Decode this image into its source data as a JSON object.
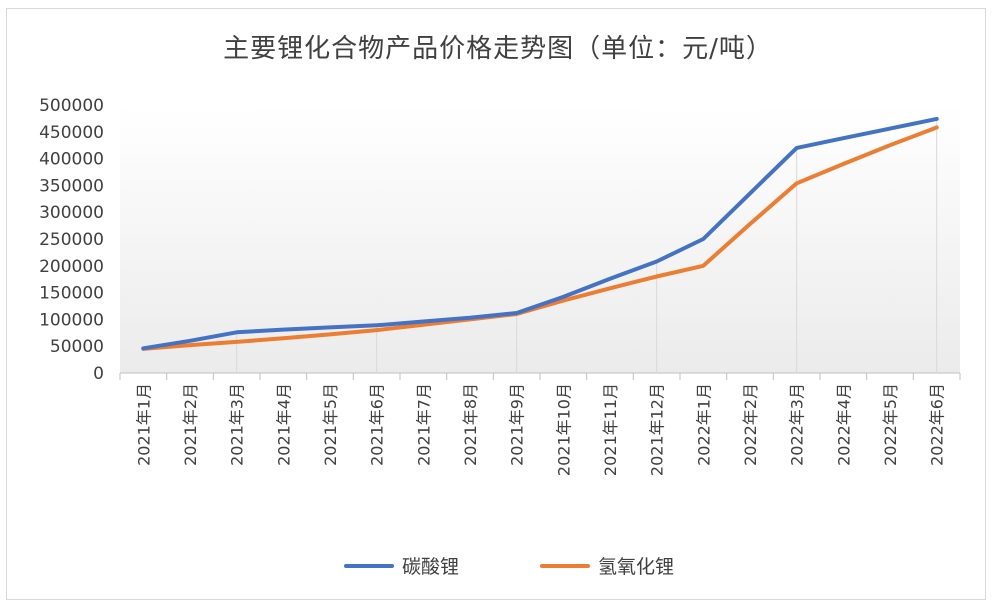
{
  "chart_data": {
    "type": "line",
    "title": "主要锂化合物产品价格走势图（单位：元/吨）",
    "xlabel": "",
    "ylabel": "",
    "categories": [
      "2021年1月",
      "2021年2月",
      "2021年3月",
      "2021年4月",
      "2021年5月",
      "2021年6月",
      "2021年7月",
      "2021年8月",
      "2021年9月",
      "2021年10月",
      "2021年11月",
      "2021年12月",
      "2022年1月",
      "2022年2月",
      "2022年3月",
      "2022年4月",
      "2022年5月",
      "2022年6月"
    ],
    "ylim": [
      0,
      500000
    ],
    "yticks": [
      "0",
      "50000",
      "100000",
      "150000",
      "200000",
      "250000",
      "300000",
      "350000",
      "400000",
      "450000",
      "500000"
    ],
    "series": [
      {
        "name": "碳酸锂",
        "color": "#4472C4",
        "values": [
          46000,
          60000,
          76000,
          81000,
          85000,
          89000,
          96000,
          103000,
          112000,
          142000,
          176000,
          208000,
          250000,
          335000,
          420000,
          438000,
          456000,
          474000
        ]
      },
      {
        "name": "氢氧化锂",
        "color": "#ED7D31",
        "values": [
          45000,
          52000,
          58000,
          65000,
          72000,
          80000,
          90000,
          100000,
          110000,
          135000,
          158000,
          180000,
          200000,
          278000,
          354000,
          390000,
          425000,
          458000
        ]
      }
    ],
    "legend_position": "bottom",
    "grid": false
  }
}
